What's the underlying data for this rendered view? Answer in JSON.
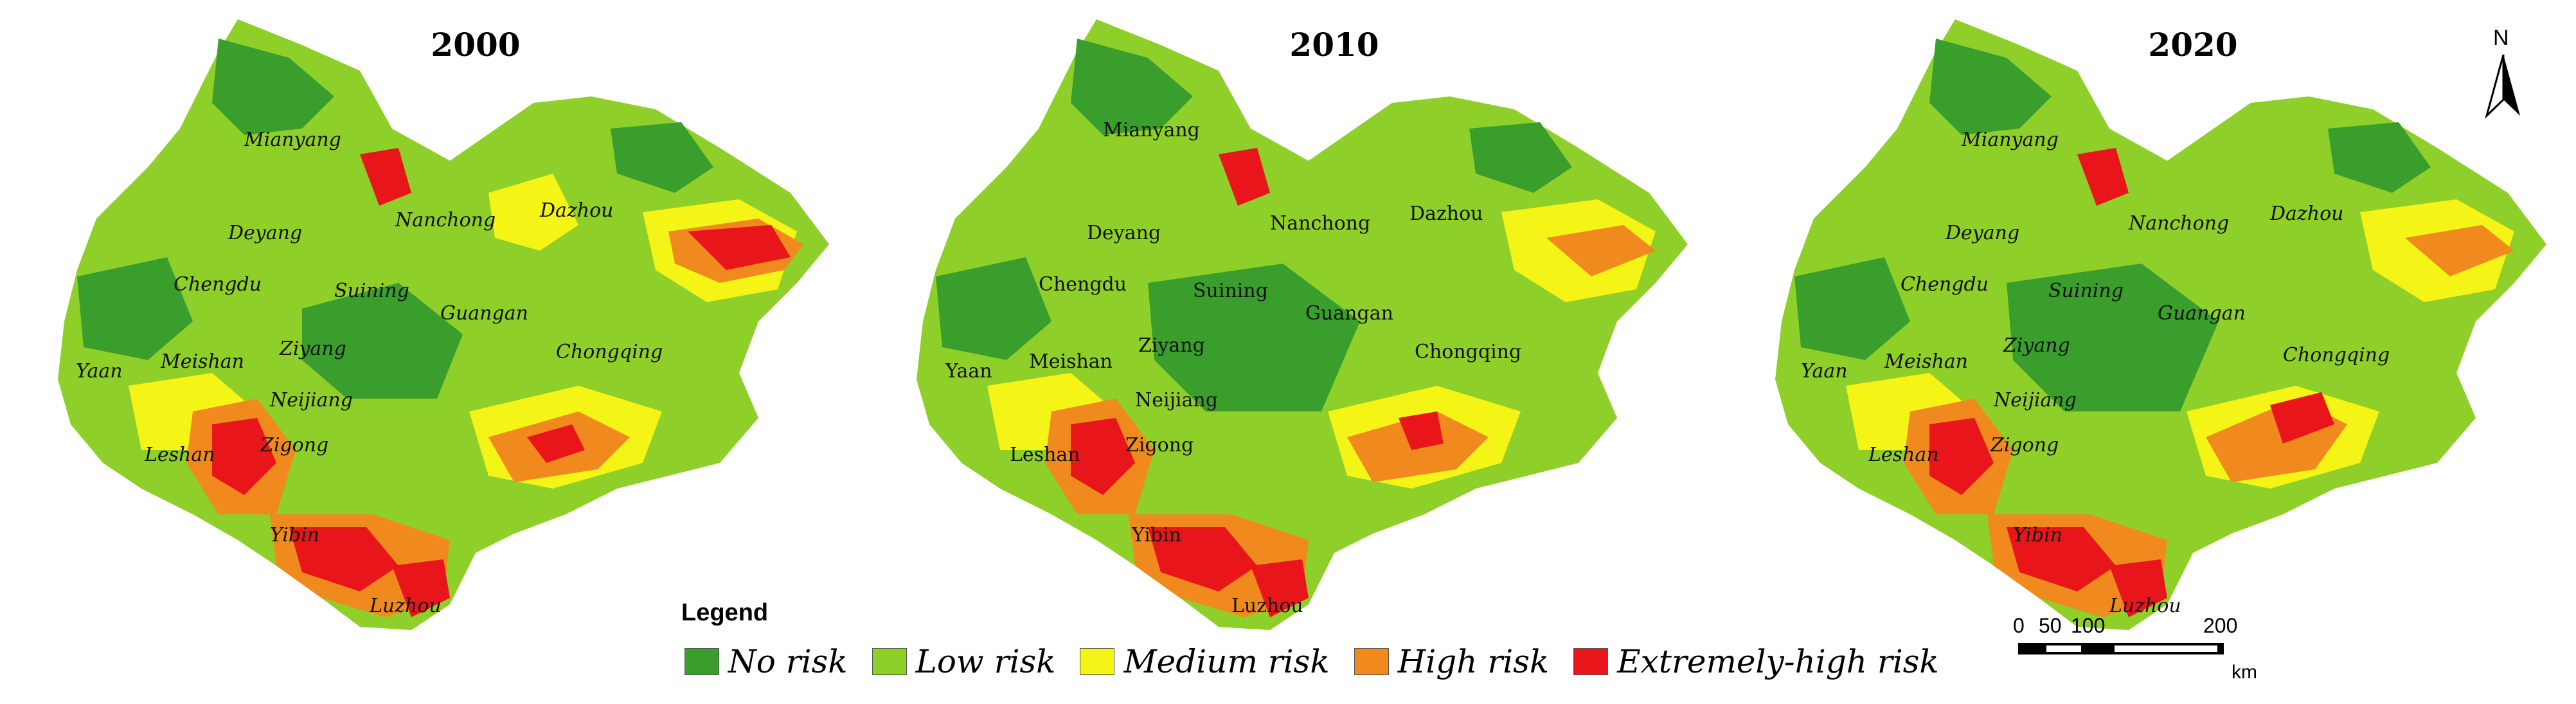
{
  "panels": [
    {
      "year": "2000",
      "cities": [
        "Mianyang",
        "Deyang",
        "Nanchong",
        "Dazhou",
        "Chengdu",
        "Suining",
        "Guangan",
        "Chongqing",
        "Meishan",
        "Ziyang",
        "Yaan",
        "Neijiang",
        "Leshan",
        "Zigong",
        "Yibin",
        "Luzhou"
      ]
    },
    {
      "year": "2010",
      "cities": [
        "Mianyang",
        "Deyang",
        "Nanchong",
        "Dazhou",
        "Chengdu",
        "Suining",
        "Guangan",
        "Chongqing",
        "Meishan",
        "Ziyang",
        "Yaan",
        "Neijiang",
        "Leshan",
        "Zigong",
        "Yibin",
        "Luzhou"
      ]
    },
    {
      "year": "2020",
      "cities": [
        "Mianyang",
        "Deyang",
        "Nanchong",
        "Dazhou",
        "Chengdu",
        "Suining",
        "Guangan",
        "Chongqing",
        "Meishan",
        "Ziyang",
        "Yaan",
        "Neijiang",
        "Leshan",
        "Zigong",
        "Yibin",
        "Luzhou"
      ]
    }
  ],
  "legend": {
    "title": "Legend",
    "items": [
      {
        "label": "No risk",
        "color": "#3a9e2c"
      },
      {
        "label": "Low risk",
        "color": "#8fcf2a"
      },
      {
        "label": "Medium risk",
        "color": "#f4f416"
      },
      {
        "label": "High risk",
        "color": "#f08a1e"
      },
      {
        "label": "Extremely-high risk",
        "color": "#e8161a"
      }
    ]
  },
  "scale": {
    "ticks": [
      "0",
      "50",
      "100",
      "200"
    ],
    "unit": "km"
  },
  "north": {
    "label": "N"
  }
}
